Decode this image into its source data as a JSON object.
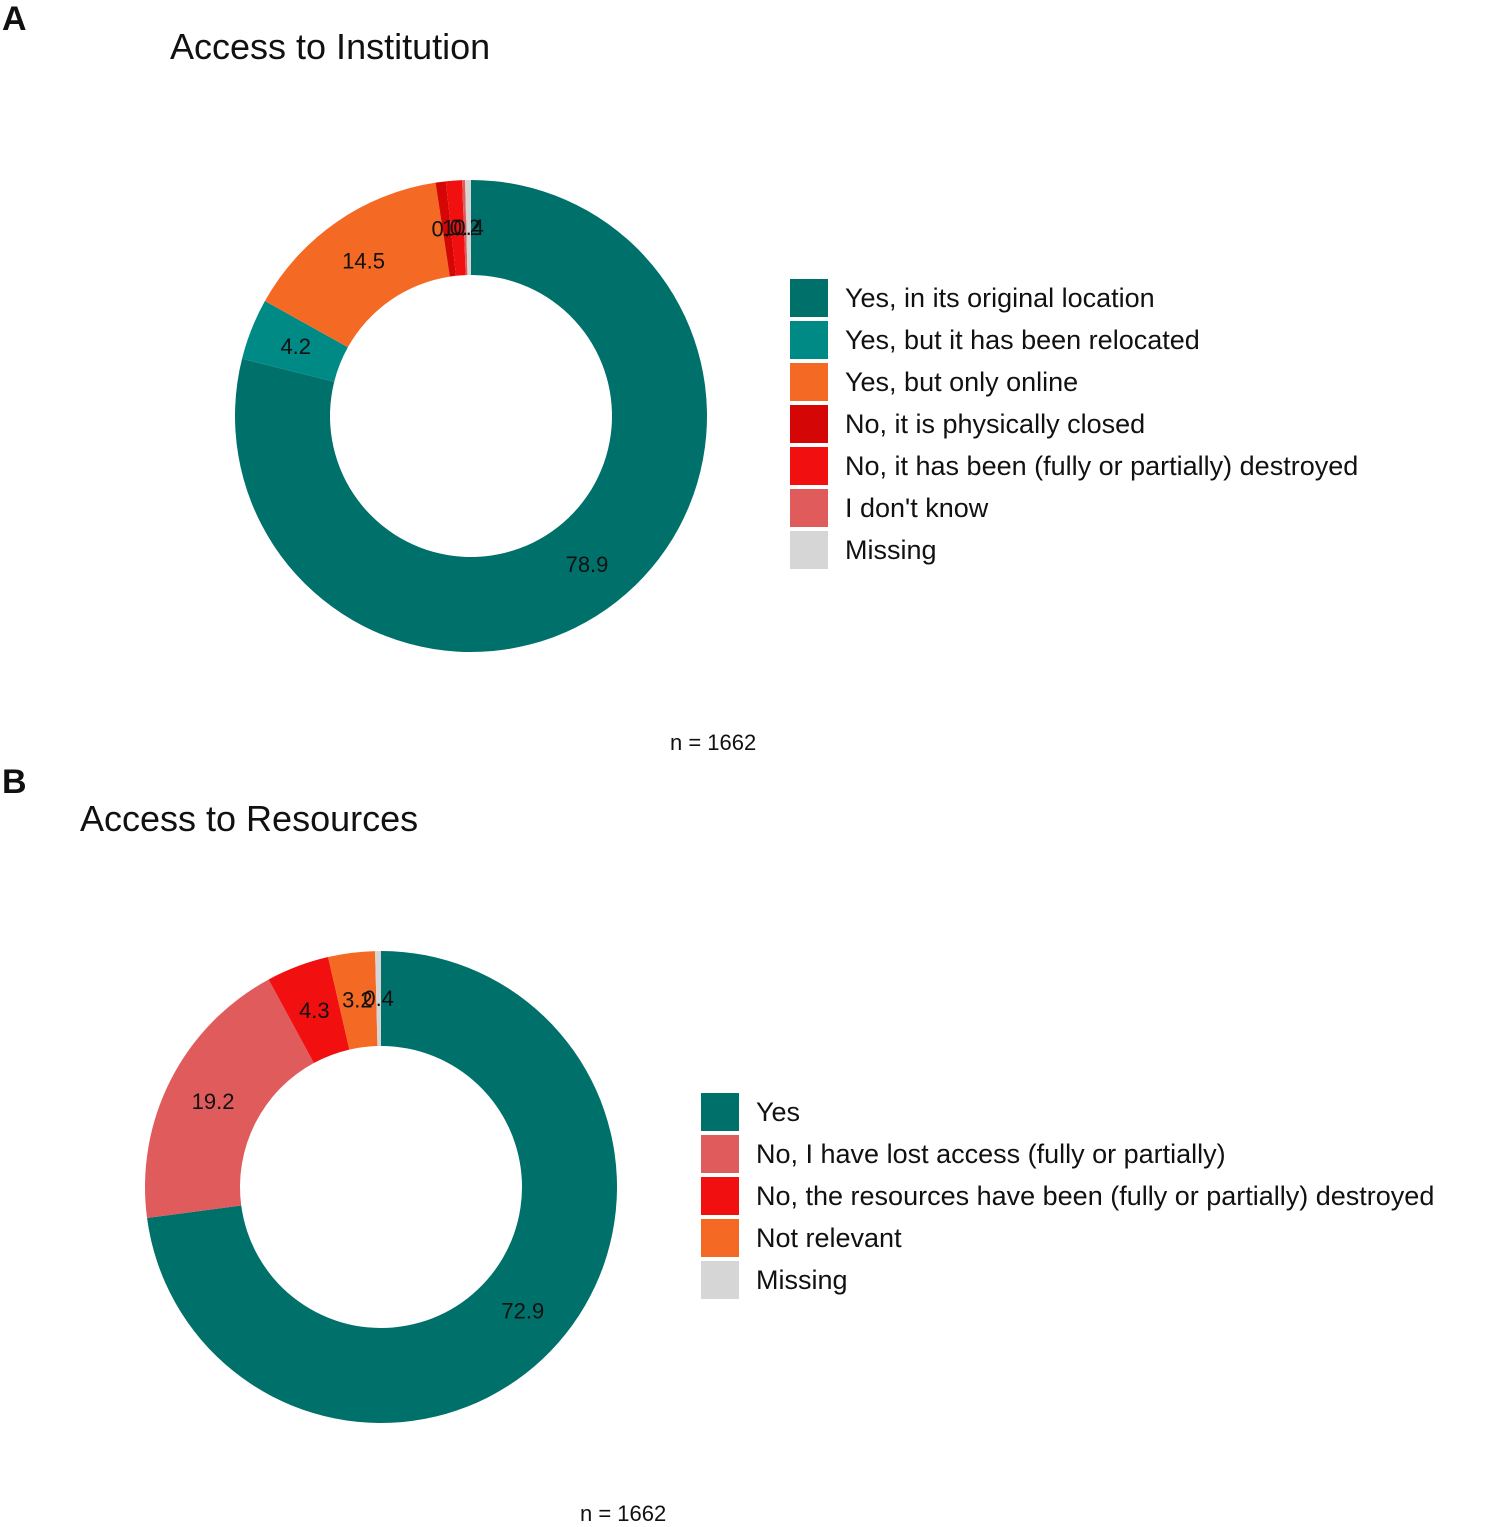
{
  "panels": [
    {
      "letter": "A",
      "caption": "n = 1662",
      "chart_data": {
        "type": "pie",
        "title": "Access to Institution",
        "categories": [
          "Yes, in its original location",
          "Yes, but it has been relocated",
          "Yes, but only online",
          "No, it is physically closed",
          "No, it has been (fully or partially) destroyed",
          "I don't know",
          "Missing"
        ],
        "values": [
          78.9,
          4.2,
          14.5,
          0.7,
          1.1,
          0.2,
          0.4
        ],
        "labels": [
          "78.9",
          "4.2",
          "14.5",
          "0.7",
          "1.1",
          "0.2",
          "0.4"
        ],
        "colors": [
          "#00706B",
          "#008A86",
          "#F46A24",
          "#D40606",
          "#F20F0F",
          "#E05C5C",
          "#D6D6D6"
        ],
        "legend_position": "right"
      }
    },
    {
      "letter": "B",
      "caption": "n = 1662",
      "chart_data": {
        "type": "pie",
        "title": "Access to Resources",
        "categories": [
          "Yes",
          "No, I have lost access (fully or partially)",
          "No, the resources have been (fully or partially) destroyed",
          "Not relevant",
          "Missing"
        ],
        "values": [
          72.9,
          19.2,
          4.3,
          3.2,
          0.4
        ],
        "labels": [
          "72.9",
          "19.2",
          "4.3",
          "3.2",
          "0.4"
        ],
        "colors": [
          "#00706B",
          "#E05C5C",
          "#F20F0F",
          "#F46A24",
          "#D6D6D6"
        ],
        "legend_position": "right"
      }
    }
  ]
}
